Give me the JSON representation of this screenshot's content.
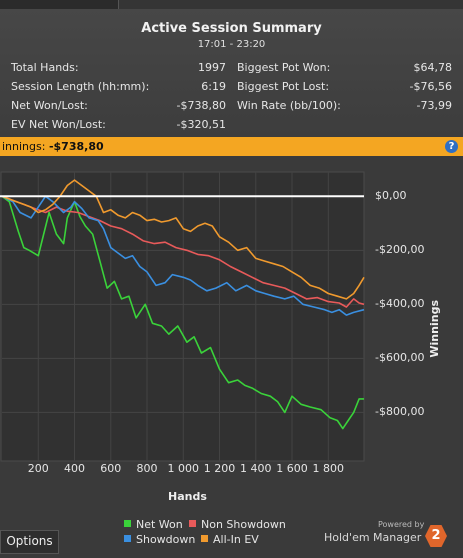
{
  "summary": {
    "title": "Active Session Summary",
    "time_range": "17:01 - 23:20",
    "stats_left": [
      {
        "label": "Total Hands:",
        "value": "1997"
      },
      {
        "label": "Session Length (hh:mm):",
        "value": "6:19"
      },
      {
        "label": "Net Won/Lost:",
        "value": "-$738,80"
      },
      {
        "label": "EV Net Won/Lost:",
        "value": "-$320,51"
      }
    ],
    "stats_right": [
      {
        "label": "Biggest Pot Won:",
        "value": "$64,78"
      },
      {
        "label": "Biggest Pot Lost:",
        "value": "-$76,56"
      },
      {
        "label": "Win Rate (bb/100):",
        "value": "-73,99"
      }
    ]
  },
  "winnings_bar": {
    "label": "innings:",
    "value": "-$738,80",
    "help_icon": "?"
  },
  "chart_data": {
    "type": "line",
    "xlabel": "Hands",
    "ylabel": "Winnings",
    "xlim": [
      0,
      1997
    ],
    "ylim": [
      -980,
      90
    ],
    "x_ticks": [
      "200",
      "400",
      "600",
      "800",
      "1 000",
      "1 200",
      "1 400",
      "1 600",
      "1 800"
    ],
    "x_tick_values": [
      200,
      400,
      600,
      800,
      1000,
      1200,
      1400,
      1600,
      1800
    ],
    "y_ticks": [
      "$0,00",
      "-$200,00",
      "-$400,00",
      "-$600,00",
      "-$800,00"
    ],
    "y_tick_values": [
      0,
      -200,
      -400,
      -600,
      -800
    ],
    "baseline": 0,
    "legend_position": "bottom",
    "series": [
      {
        "name": "Net Won",
        "color": "#3ad23a",
        "x": [
          0,
          40,
          90,
          120,
          150,
          200,
          260,
          300,
          340,
          360,
          400,
          430,
          460,
          500,
          540,
          580,
          620,
          660,
          700,
          740,
          790,
          830,
          880,
          920,
          970,
          1020,
          1060,
          1100,
          1150,
          1200,
          1250,
          1300,
          1340,
          1380,
          1430,
          1480,
          1520,
          1560,
          1600,
          1650,
          1700,
          1760,
          1810,
          1850,
          1880,
          1910,
          1940,
          1970,
          1997
        ],
        "y": [
          0,
          -20,
          -130,
          -190,
          -200,
          -220,
          -60,
          -140,
          -175,
          -80,
          -20,
          -75,
          -110,
          -140,
          -240,
          -340,
          -315,
          -380,
          -370,
          -450,
          -400,
          -470,
          -480,
          -510,
          -480,
          -540,
          -520,
          -580,
          -560,
          -640,
          -690,
          -680,
          -700,
          -710,
          -730,
          -740,
          -760,
          -800,
          -740,
          -770,
          -780,
          -790,
          -820,
          -830,
          -860,
          -830,
          -800,
          -750,
          -750
        ]
      },
      {
        "name": "Non Showdown",
        "color": "#e85a5a",
        "x": [
          0,
          60,
          120,
          180,
          240,
          300,
          360,
          420,
          480,
          540,
          600,
          660,
          720,
          780,
          840,
          900,
          960,
          1020,
          1080,
          1140,
          1200,
          1260,
          1320,
          1380,
          1440,
          1500,
          1560,
          1620,
          1680,
          1740,
          1800,
          1860,
          1900,
          1940,
          1970,
          1997
        ],
        "y": [
          0,
          -15,
          -30,
          -45,
          -60,
          -40,
          -55,
          -60,
          -75,
          -90,
          -110,
          -120,
          -140,
          -165,
          -175,
          -170,
          -190,
          -200,
          -215,
          -220,
          -235,
          -260,
          -280,
          -300,
          -320,
          -330,
          -340,
          -360,
          -380,
          -375,
          -390,
          -395,
          -410,
          -380,
          -395,
          -400
        ]
      },
      {
        "name": "Showdown",
        "color": "#3a8fe0",
        "x": [
          0,
          60,
          100,
          160,
          200,
          240,
          280,
          340,
          380,
          400,
          440,
          480,
          530,
          560,
          600,
          640,
          680,
          720,
          760,
          800,
          850,
          900,
          940,
          1000,
          1040,
          1080,
          1130,
          1180,
          1240,
          1290,
          1350,
          1400,
          1450,
          1500,
          1560,
          1610,
          1660,
          1720,
          1780,
          1820,
          1860,
          1900,
          1940,
          1997
        ],
        "y": [
          0,
          -20,
          -60,
          -80,
          -40,
          0,
          -20,
          -60,
          -40,
          -20,
          -45,
          -80,
          -90,
          -120,
          -190,
          -210,
          -230,
          -220,
          -260,
          -280,
          -330,
          -320,
          -290,
          -300,
          -310,
          -330,
          -350,
          -340,
          -320,
          -350,
          -330,
          -350,
          -360,
          -370,
          -380,
          -370,
          -400,
          -410,
          -420,
          -430,
          -420,
          -440,
          -430,
          -420
        ]
      },
      {
        "name": "All-In EV",
        "color": "#f09a2e",
        "x": [
          0,
          40,
          80,
          120,
          160,
          200,
          240,
          280,
          320,
          360,
          400,
          440,
          480,
          520,
          560,
          600,
          640,
          680,
          720,
          760,
          800,
          840,
          880,
          920,
          960,
          1000,
          1040,
          1080,
          1120,
          1160,
          1200,
          1250,
          1300,
          1350,
          1400,
          1450,
          1500,
          1550,
          1600,
          1650,
          1700,
          1750,
          1800,
          1850,
          1900,
          1940,
          1970,
          1997
        ],
        "y": [
          0,
          -10,
          -20,
          -30,
          -40,
          -60,
          -50,
          -30,
          0,
          40,
          60,
          40,
          20,
          0,
          -60,
          -50,
          -70,
          -80,
          -60,
          -70,
          -90,
          -85,
          -95,
          -90,
          -80,
          -120,
          -130,
          -110,
          -100,
          -110,
          -150,
          -170,
          -200,
          -190,
          -230,
          -240,
          -250,
          -260,
          -280,
          -300,
          -330,
          -340,
          -360,
          -370,
          -380,
          -360,
          -330,
          -300
        ]
      }
    ]
  },
  "footer": {
    "options_label": "Options",
    "powered_by": "Powered by",
    "brand": "Hold'em Manager",
    "logo_text": "2"
  }
}
